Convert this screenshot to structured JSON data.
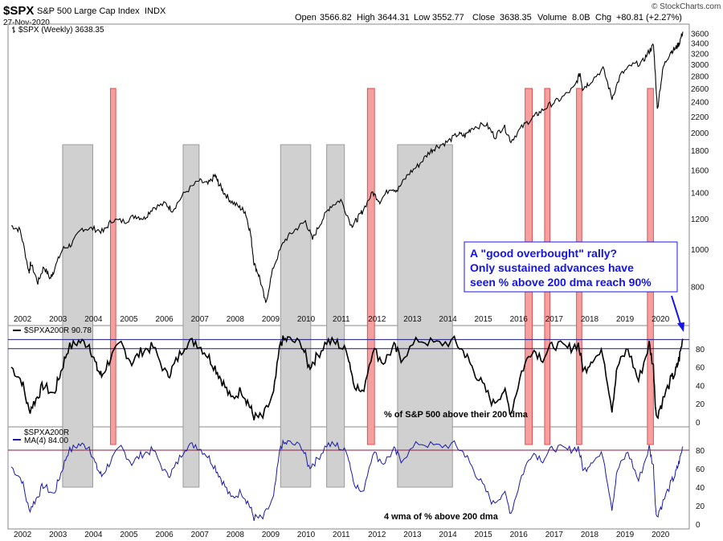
{
  "header": {
    "symbol": "$SPX",
    "name": "S&P 500 Large Cap Index",
    "exchange": "INDX",
    "date": "27-Nov-2020",
    "watermark": "© StockCharts.com",
    "open_label": "Open",
    "open": "3566.82",
    "high_label": "High",
    "high": "3644.31",
    "low_label": "Low",
    "low": "3552.77",
    "close_label": "Close",
    "close": "3638.35",
    "volume_label": "Volume",
    "volume": "8.0B",
    "chg_label": "Chg",
    "chg": "+80.81 (+2.27%)"
  },
  "colors": {
    "price_line": "#000000",
    "pct_line": "#000000",
    "wma_line": "#1a1aa6",
    "red_zone": "#f4a0a0",
    "red_border": "#e05050",
    "gray_zone": "#d0d0d0",
    "gray_border": "#9a9a9a",
    "level_line": "#1a1a8c",
    "annotation": "#1414e6",
    "annotation_border": "#1414e6"
  },
  "annotation": {
    "lines": [
      "A \"good overbought\" rally?",
      "Only sustained advances have",
      "seen % above 200 dma reach 90%"
    ]
  },
  "chart_data": [
    {
      "type": "line",
      "panel": "price",
      "legend": "$SPX (Weekly) 3638.35",
      "scale": "log",
      "ylim": [
        660,
        3700
      ],
      "y_ticks": [
        800,
        1000,
        1200,
        1400,
        1600,
        1800,
        2000,
        2200,
        2400,
        2600,
        2800,
        3000,
        3200,
        3400,
        3600
      ],
      "x_ticks": [
        "2002",
        "2003",
        "2004",
        "2005",
        "2006",
        "2007",
        "2008",
        "2009",
        "2010",
        "2011",
        "2012",
        "2013",
        "2014",
        "2015",
        "2016",
        "2017",
        "2018",
        "2019",
        "2020"
      ],
      "xlim": [
        2002.0,
        2020.95
      ],
      "series": [
        {
          "name": "$SPX",
          "x": [
            2002.0,
            2002.25,
            2002.5,
            2002.55,
            2002.75,
            2002.92,
            2003.1,
            2003.2,
            2003.45,
            2003.7,
            2004.0,
            2004.3,
            2004.6,
            2004.85,
            2005.2,
            2005.5,
            2005.75,
            2006.0,
            2006.35,
            2006.55,
            2006.9,
            2007.3,
            2007.55,
            2007.75,
            2007.85,
            2008.0,
            2008.2,
            2008.45,
            2008.6,
            2008.75,
            2008.85,
            2009.0,
            2009.18,
            2009.4,
            2009.7,
            2010.0,
            2010.3,
            2010.5,
            2010.75,
            2011.0,
            2011.3,
            2011.6,
            2011.75,
            2011.9,
            2012.2,
            2012.4,
            2012.7,
            2012.9,
            2013.2,
            2013.5,
            2013.8,
            2014.0,
            2014.3,
            2014.6,
            2014.8,
            2015.0,
            2015.4,
            2015.65,
            2015.9,
            2016.1,
            2016.4,
            2016.7,
            2016.9,
            2017.2,
            2017.5,
            2017.9,
            2018.05,
            2018.12,
            2018.3,
            2018.7,
            2018.95,
            2019.2,
            2019.5,
            2019.8,
            2020.0,
            2020.12,
            2020.23,
            2020.4,
            2020.6,
            2020.75,
            2020.85,
            2020.95
          ],
          "values": [
            1150,
            1120,
            870,
            920,
            820,
            900,
            840,
            880,
            1000,
            1030,
            1130,
            1130,
            1110,
            1190,
            1180,
            1220,
            1200,
            1280,
            1310,
            1260,
            1400,
            1500,
            1470,
            1550,
            1480,
            1400,
            1330,
            1280,
            1250,
            1100,
            920,
            850,
            720,
            900,
            1050,
            1120,
            1180,
            1060,
            1180,
            1290,
            1340,
            1150,
            1190,
            1250,
            1400,
            1330,
            1440,
            1420,
            1560,
            1650,
            1780,
            1840,
            1890,
            1980,
            1960,
            2060,
            2100,
            1950,
            2080,
            1900,
            2060,
            2180,
            2250,
            2360,
            2440,
            2620,
            2850,
            2600,
            2680,
            2920,
            2450,
            2820,
            2980,
            3030,
            3240,
            3360,
            2290,
            2950,
            3230,
            3300,
            3400,
            3638
          ]
        }
      ]
    },
    {
      "type": "line",
      "panel": "pct_above_200dma",
      "legend": "$SPXA200R 90.78",
      "ylim": [
        0,
        100
      ],
      "y_ticks": [
        0,
        20,
        40,
        60,
        80
      ],
      "reference_lines": [
        80,
        90
      ],
      "annotation": "% of S&P 500 above their 200 dma",
      "series": [
        {
          "name": "$SPXA200R",
          "x": [
            2002.0,
            2002.3,
            2002.5,
            2002.7,
            2002.9,
            2003.2,
            2003.4,
            2003.6,
            2003.9,
            2004.2,
            2004.4,
            2004.55,
            2004.8,
            2005.1,
            2005.4,
            2005.7,
            2006.0,
            2006.4,
            2006.6,
            2006.9,
            2007.2,
            2007.5,
            2007.75,
            2007.95,
            2008.2,
            2008.5,
            2008.7,
            2008.85,
            2009.1,
            2009.4,
            2009.6,
            2009.8,
            2010.2,
            2010.4,
            2010.6,
            2010.9,
            2011.2,
            2011.5,
            2011.65,
            2011.9,
            2012.2,
            2012.5,
            2012.8,
            2013.0,
            2013.5,
            2014.0,
            2014.5,
            2014.8,
            2015.0,
            2015.3,
            2015.6,
            2015.9,
            2016.1,
            2016.4,
            2016.7,
            2017.0,
            2017.3,
            2017.7,
            2018.0,
            2018.15,
            2018.4,
            2018.7,
            2018.95,
            2019.1,
            2019.4,
            2019.7,
            2020.0,
            2020.12,
            2020.2,
            2020.35,
            2020.6,
            2020.75,
            2020.85,
            2020.95
          ],
          "values": [
            60,
            45,
            12,
            25,
            40,
            30,
            55,
            80,
            88,
            85,
            60,
            50,
            70,
            85,
            65,
            78,
            82,
            50,
            62,
            85,
            88,
            75,
            60,
            45,
            25,
            35,
            20,
            5,
            5,
            30,
            88,
            90,
            85,
            60,
            70,
            88,
            86,
            75,
            45,
            30,
            80,
            65,
            82,
            70,
            90,
            85,
            88,
            75,
            60,
            40,
            20,
            35,
            10,
            55,
            80,
            70,
            85,
            80,
            85,
            55,
            70,
            75,
            15,
            60,
            80,
            45,
            85,
            60,
            5,
            20,
            45,
            55,
            70,
            90.78
          ]
        }
      ]
    },
    {
      "type": "line",
      "panel": "wma_4",
      "legend": "$SPXA200R",
      "legend2": "MA(4) 84.00",
      "ylim": [
        0,
        100
      ],
      "y_ticks": [
        0,
        20,
        40,
        60,
        80
      ],
      "reference_lines": [
        80
      ],
      "annotation": "4 wma of % above 200 dma",
      "x_ticks": [
        "2002",
        "2003",
        "2004",
        "2005",
        "2006",
        "2007",
        "2008",
        "2009",
        "2010",
        "2011",
        "2012",
        "2013",
        "2014",
        "2015",
        "2016",
        "2017",
        "2018",
        "2019",
        "2020"
      ],
      "series": [
        {
          "name": "MA(4)",
          "x": [
            2002.0,
            2002.3,
            2002.5,
            2002.7,
            2002.9,
            2003.2,
            2003.4,
            2003.6,
            2003.9,
            2004.2,
            2004.4,
            2004.55,
            2004.8,
            2005.1,
            2005.4,
            2005.7,
            2006.0,
            2006.4,
            2006.6,
            2006.9,
            2007.2,
            2007.5,
            2007.75,
            2007.95,
            2008.2,
            2008.5,
            2008.7,
            2008.85,
            2009.1,
            2009.4,
            2009.6,
            2009.8,
            2010.2,
            2010.4,
            2010.6,
            2010.9,
            2011.2,
            2011.5,
            2011.65,
            2011.9,
            2012.2,
            2012.5,
            2012.8,
            2013.0,
            2013.5,
            2014.0,
            2014.5,
            2014.8,
            2015.0,
            2015.3,
            2015.6,
            2015.9,
            2016.1,
            2016.4,
            2016.7,
            2017.0,
            2017.3,
            2017.7,
            2018.0,
            2018.15,
            2018.4,
            2018.7,
            2018.95,
            2019.1,
            2019.4,
            2019.7,
            2020.0,
            2020.12,
            2020.2,
            2020.35,
            2020.6,
            2020.75,
            2020.85,
            2020.95
          ],
          "values": [
            62,
            48,
            15,
            27,
            42,
            32,
            55,
            78,
            86,
            84,
            62,
            52,
            68,
            83,
            66,
            76,
            80,
            52,
            60,
            83,
            86,
            76,
            62,
            47,
            28,
            35,
            22,
            7,
            6,
            28,
            85,
            88,
            84,
            62,
            68,
            86,
            85,
            76,
            48,
            32,
            78,
            66,
            80,
            70,
            88,
            84,
            86,
            76,
            62,
            42,
            22,
            35,
            12,
            52,
            78,
            70,
            83,
            80,
            83,
            57,
            70,
            75,
            18,
            58,
            78,
            47,
            83,
            62,
            8,
            20,
            43,
            55,
            68,
            84.0
          ]
        }
      ]
    }
  ],
  "zones": {
    "gray": [
      [
        2003.45,
        2004.3
      ],
      [
        2006.85,
        2007.3
      ],
      [
        2009.6,
        2010.45
      ],
      [
        2010.9,
        2011.4
      ],
      [
        2012.9,
        2014.45
      ]
    ],
    "red": [
      [
        2004.8,
        2004.95
      ],
      [
        2012.05,
        2012.25
      ],
      [
        2016.5,
        2016.7
      ],
      [
        2017.05,
        2017.2
      ],
      [
        2017.95,
        2018.1
      ],
      [
        2019.95,
        2020.12
      ]
    ]
  }
}
